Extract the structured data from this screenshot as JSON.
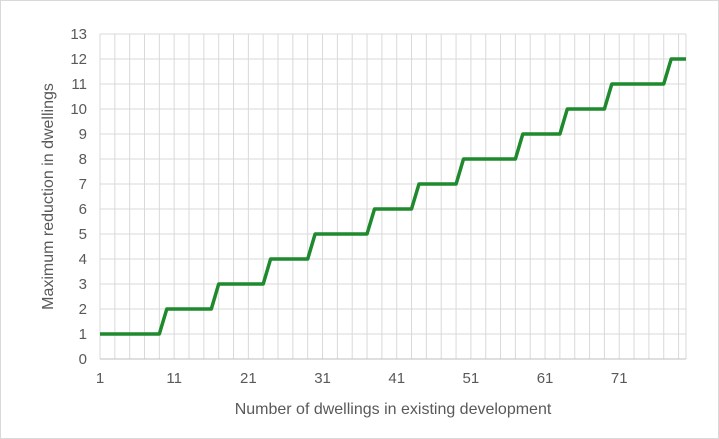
{
  "chart_data": {
    "type": "line",
    "title": "",
    "xlabel": "Number of dwellings in existing development",
    "ylabel": "Maximum reduction in dwellings",
    "xlim": [
      1,
      80
    ],
    "ylim": [
      0,
      13
    ],
    "x_ticks": [
      "1",
      "11",
      "21",
      "31",
      "41",
      "51",
      "61",
      "71"
    ],
    "y_ticks": [
      "0",
      "1",
      "2",
      "3",
      "4",
      "5",
      "6",
      "7",
      "8",
      "9",
      "10",
      "11",
      "12",
      "13"
    ],
    "grid": true,
    "legend": "none",
    "series": [
      {
        "color": "#1e8a2d",
        "x": [
          1,
          9,
          10,
          16,
          17,
          23,
          24,
          29,
          30,
          37,
          38,
          43,
          44,
          49,
          50,
          57,
          58,
          63,
          64,
          69,
          70,
          77,
          78,
          80
        ],
        "y": [
          1,
          1,
          2,
          2,
          3,
          3,
          4,
          4,
          5,
          5,
          6,
          6,
          7,
          7,
          8,
          8,
          9,
          9,
          10,
          10,
          11,
          11,
          12,
          12
        ]
      }
    ]
  }
}
